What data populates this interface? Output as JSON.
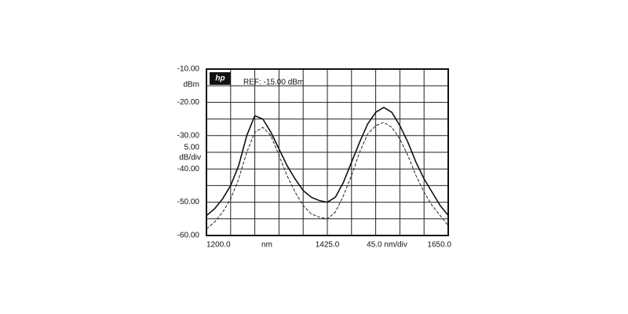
{
  "chart_data": {
    "type": "line",
    "logo": "hp",
    "ref_label": "REF: -15.00 dBm",
    "y_unit": "dBm",
    "x_unit": "nm",
    "ydiv": {
      "value": 5,
      "label": "5.00",
      "unit": "dB/div"
    },
    "xdiv": {
      "value": 45,
      "label": "45.0 nm/div"
    },
    "xlim": [
      1200,
      1650
    ],
    "ylim": [
      -60,
      -10
    ],
    "xticks": [
      {
        "value": 1200,
        "label": "1200.0"
      },
      {
        "value": 1425,
        "label": "1425.0"
      },
      {
        "value": 1650,
        "label": "1650.0"
      }
    ],
    "yticks": [
      {
        "value": -10,
        "label": "-10.00"
      },
      {
        "value": -20,
        "label": "-20.00"
      },
      {
        "value": -30,
        "label": "-30.00"
      },
      {
        "value": -40,
        "label": "-40.00"
      },
      {
        "value": -50,
        "label": "-50.00"
      },
      {
        "value": -60,
        "label": "-60.00"
      }
    ],
    "grid": true,
    "x": [
      1200,
      1215,
      1230,
      1245,
      1260,
      1275,
      1290,
      1305,
      1320,
      1335,
      1350,
      1365,
      1380,
      1395,
      1410,
      1425,
      1440,
      1455,
      1470,
      1485,
      1500,
      1515,
      1530,
      1545,
      1560,
      1575,
      1590,
      1605,
      1620,
      1635,
      1650
    ],
    "series": [
      {
        "color": "#111111",
        "dash": false,
        "values": [
          -54,
          -52,
          -49,
          -45,
          -39,
          -30,
          -24,
          -25,
          -29,
          -34,
          -39,
          -43,
          -46.5,
          -48.5,
          -49.5,
          -50,
          -48.5,
          -44,
          -38,
          -32,
          -26.5,
          -23,
          -21.5,
          -23,
          -27,
          -32,
          -38,
          -43,
          -47,
          -51,
          -54
        ]
      },
      {
        "color": "#222222",
        "dash": true,
        "values": [
          -58,
          -56,
          -53,
          -49,
          -43,
          -35,
          -29,
          -27.5,
          -30,
          -36,
          -42,
          -47,
          -51,
          -53.5,
          -54.5,
          -55,
          -53,
          -48,
          -42,
          -35,
          -29.5,
          -27,
          -26,
          -27.5,
          -31,
          -36,
          -42,
          -47,
          -51,
          -54,
          -57
        ]
      }
    ]
  }
}
